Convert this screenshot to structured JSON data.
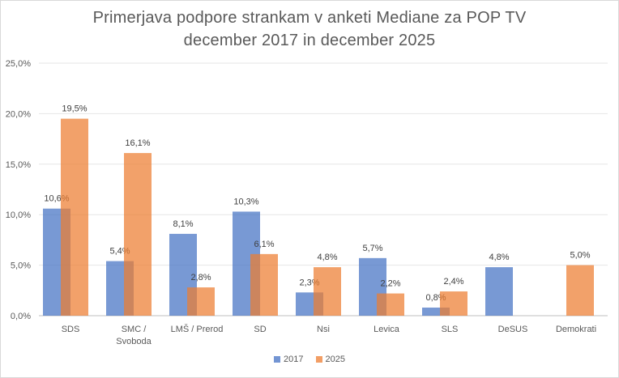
{
  "chart_data": {
    "type": "bar",
    "title_line1": "Primerjava podpore strankam v anketi Mediane za POP TV",
    "title_line2": "december 2017 in december 2025",
    "categories": [
      [
        "SDS"
      ],
      [
        "SMC /",
        "Svoboda"
      ],
      [
        "LMŠ / Prerod"
      ],
      [
        "SD"
      ],
      [
        "Nsi"
      ],
      [
        "Levica"
      ],
      [
        "SLS"
      ],
      [
        "DeSUS"
      ],
      [
        "Demokrati"
      ]
    ],
    "series": [
      {
        "name": "2017",
        "color": "#4472c4",
        "values": [
          10.6,
          5.4,
          8.1,
          10.3,
          2.3,
          5.7,
          0.8,
          4.8,
          null
        ],
        "labels": [
          "10,6%",
          "5,4%",
          "8,1%",
          "10,3%",
          "2,3%",
          "5,7%",
          "0,8%",
          "4,8%",
          null
        ]
      },
      {
        "name": "2025",
        "color": "#ed7d31",
        "values": [
          19.5,
          16.1,
          2.8,
          6.1,
          4.8,
          2.2,
          2.4,
          null,
          5.0
        ],
        "labels": [
          "19,5%",
          "16,1%",
          "2,8%",
          "6,1%",
          "4,8%",
          "2,2%",
          "2,4%",
          null,
          "5,0%"
        ]
      }
    ],
    "ylim": [
      0,
      25
    ],
    "yticks": [
      "0,0%",
      "5,0%",
      "10,0%",
      "15,0%",
      "20,0%",
      "25,0%"
    ],
    "grid": true,
    "legend_position": "bottom"
  }
}
